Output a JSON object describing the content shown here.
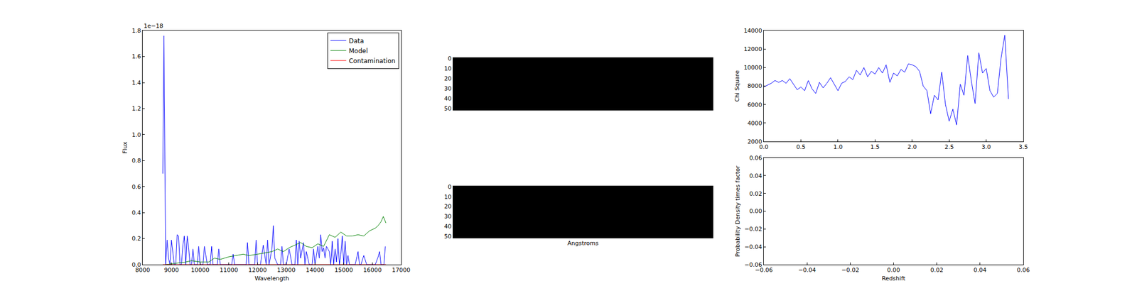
{
  "chart_data": [
    {
      "type": "line",
      "x_label": "Wavelength",
      "y_label": "Flux",
      "annotations": [
        "1e−18"
      ],
      "xlim": [
        8000,
        17000
      ],
      "xticks": [
        8000,
        9000,
        10000,
        11000,
        12000,
        13000,
        14000,
        15000,
        16000,
        17000
      ],
      "ylim": [
        0,
        1.8
      ],
      "yticks": [
        {
          "value": 0,
          "label": "0.0"
        },
        0.2,
        0.4,
        0.6,
        0.8,
        {
          "value": 1,
          "label": "1.0"
        },
        1.2,
        1.4,
        1.6,
        1.8
      ],
      "legend": "upper right",
      "series": [
        {
          "name": "Data",
          "color": "#0000ff",
          "x": [
            8700,
            8740,
            8800,
            8850,
            8900,
            8950,
            9000,
            9050,
            9100,
            9150,
            9200,
            9250,
            9300,
            9350,
            9400,
            9450,
            9500,
            9550,
            9600,
            9650,
            9700,
            9750,
            9800,
            9850,
            9900,
            9950,
            10000,
            10050,
            10100,
            10150,
            10200,
            10250,
            10300,
            10350,
            10400,
            10450,
            10500,
            10550,
            10600,
            10650,
            10700,
            10750,
            10800,
            10850,
            10900,
            11000,
            11100,
            11150,
            11200,
            11300,
            11400,
            11500,
            11600,
            11650,
            11700,
            11800,
            11900,
            11950,
            12000,
            12100,
            12200,
            12300,
            12350,
            12400,
            12500,
            12550,
            12600,
            12700,
            12800,
            12850,
            12900,
            13000,
            13100,
            13200,
            13300,
            13350,
            13400,
            13450,
            13500,
            13600,
            13650,
            13700,
            13800,
            13900,
            13950,
            14000,
            14100,
            14150,
            14200,
            14250,
            14300,
            14350,
            14400,
            14450,
            14500,
            14550,
            14600,
            14650,
            14700,
            14750,
            14800,
            14850,
            14900,
            14950,
            15000,
            15050,
            15100,
            15150,
            15200,
            15300,
            15400,
            15500,
            15550,
            15600,
            15700,
            15800,
            15900,
            16000,
            16100,
            16200,
            16250,
            16300,
            16350,
            16400,
            16450
          ],
          "values": [
            0.7,
            1.76,
            0.0,
            0.19,
            0.05,
            0.0,
            0.19,
            0.08,
            0.0,
            0.0,
            0.23,
            0.22,
            0.0,
            0.0,
            0.15,
            0.22,
            0.0,
            0.22,
            0.13,
            0.0,
            0.0,
            0.12,
            0.0,
            0.0,
            0.0,
            0.14,
            0.0,
            0.0,
            0.0,
            0.14,
            0.06,
            0.0,
            0.0,
            0.0,
            0.14,
            0.0,
            0.0,
            0.0,
            0.0,
            0.12,
            0.0,
            0.0,
            0.0,
            0.0,
            0.0,
            0.0,
            0.0,
            0.08,
            0.0,
            0.0,
            0.0,
            0.0,
            0.0,
            0.17,
            0.0,
            0.0,
            0.0,
            0.19,
            0.0,
            0.0,
            0.15,
            0.0,
            0.19,
            0.0,
            0.12,
            0.3,
            0.05,
            0.0,
            0.0,
            0.14,
            0.0,
            0.0,
            0.12,
            0.0,
            0.0,
            0.19,
            0.0,
            0.18,
            0.05,
            0.17,
            0.0,
            0.1,
            0.0,
            0.0,
            0.12,
            0.0,
            0.14,
            0.05,
            0.23,
            0.1,
            0.13,
            0.05,
            0.14,
            0.12,
            0.1,
            0.0,
            0.18,
            0.0,
            0.12,
            0.02,
            0.2,
            0.0,
            0.08,
            0.22,
            0.0,
            0.18,
            0.0,
            0.07,
            0.0,
            0.0,
            0.0,
            0.1,
            0.0,
            0.0,
            0.07,
            0.0,
            0.0,
            0.0,
            0.0,
            0.06,
            0.1,
            0.0,
            0.0,
            0.0,
            0.14
          ]
        },
        {
          "name": "Model",
          "color": "#008000",
          "x": [
            8800,
            9000,
            9500,
            9700,
            10000,
            10300,
            10500,
            10700,
            11000,
            11500,
            11700,
            12000,
            12500,
            12700,
            12900,
            13100,
            13300,
            13500,
            13700,
            13900,
            14100,
            14300,
            14500,
            14700,
            14900,
            15100,
            15300,
            15500,
            15700,
            15900,
            16100,
            16200,
            16300,
            16380,
            16470
          ],
          "values": [
            0.0,
            0.005,
            0.02,
            0.03,
            0.02,
            0.02,
            0.05,
            0.04,
            0.06,
            0.08,
            0.07,
            0.08,
            0.1,
            0.12,
            0.1,
            0.13,
            0.15,
            0.17,
            0.14,
            0.13,
            0.16,
            0.14,
            0.23,
            0.21,
            0.25,
            0.22,
            0.22,
            0.23,
            0.22,
            0.26,
            0.28,
            0.3,
            0.33,
            0.37,
            0.32
          ]
        },
        {
          "name": "Contamination",
          "color": "#ff0000",
          "x": [
            8700,
            10000,
            12000,
            14000,
            16470
          ],
          "values": [
            0,
            0,
            0,
            0,
            0
          ]
        }
      ]
    },
    {
      "type": "heatmap",
      "ylim": [
        51.5,
        -0.5
      ],
      "yticks": [
        0,
        10,
        20,
        30,
        40,
        50
      ],
      "tick_labels": "y",
      "color": "#000000",
      "cells": [
        [
          0
        ],
        [
          0
        ],
        [
          0
        ],
        [
          0
        ],
        [
          0
        ],
        [
          0
        ],
        [
          0
        ],
        [
          0
        ],
        [
          0
        ],
        [
          0
        ],
        [
          0
        ],
        [
          0
        ],
        [
          0
        ],
        [
          0
        ],
        [
          0
        ],
        [
          0
        ],
        [
          0
        ],
        [
          0
        ],
        [
          0
        ],
        [
          0
        ],
        [
          0
        ],
        [
          0
        ],
        [
          0
        ],
        [
          0
        ],
        [
          0
        ],
        [
          0
        ],
        [
          0
        ],
        [
          0
        ],
        [
          0
        ],
        [
          0
        ],
        [
          0
        ],
        [
          0
        ],
        [
          0
        ],
        [
          0
        ],
        [
          0
        ],
        [
          0
        ],
        [
          0
        ],
        [
          0
        ],
        [
          0
        ],
        [
          0
        ],
        [
          0
        ],
        [
          0
        ],
        [
          0
        ],
        [
          0
        ],
        [
          0
        ],
        [
          0
        ],
        [
          0
        ],
        [
          0
        ],
        [
          0
        ],
        [
          0
        ],
        [
          0
        ],
        [
          0
        ]
      ]
    },
    {
      "type": "heatmap",
      "x_label": "Angstroms",
      "ylim": [
        51.5,
        -0.5
      ],
      "yticks": [
        0,
        10,
        20,
        30,
        40,
        50
      ],
      "tick_labels": "y",
      "color": "#000000",
      "cells": [
        [
          0
        ],
        [
          0
        ],
        [
          0
        ],
        [
          0
        ],
        [
          0
        ],
        [
          0
        ],
        [
          0
        ],
        [
          0
        ],
        [
          0
        ],
        [
          0
        ],
        [
          0
        ],
        [
          0
        ],
        [
          0
        ],
        [
          0
        ],
        [
          0
        ],
        [
          0
        ],
        [
          0
        ],
        [
          0
        ],
        [
          0
        ],
        [
          0
        ],
        [
          0
        ],
        [
          0
        ],
        [
          0
        ],
        [
          0
        ],
        [
          0
        ],
        [
          0
        ],
        [
          0
        ],
        [
          0
        ],
        [
          0
        ],
        [
          0
        ],
        [
          0
        ],
        [
          0
        ],
        [
          0
        ],
        [
          0
        ],
        [
          0
        ],
        [
          0
        ],
        [
          0
        ],
        [
          0
        ],
        [
          0
        ],
        [
          0
        ],
        [
          0
        ],
        [
          0
        ],
        [
          0
        ],
        [
          0
        ],
        [
          0
        ],
        [
          0
        ],
        [
          0
        ],
        [
          0
        ],
        [
          0
        ],
        [
          0
        ],
        [
          0
        ],
        [
          0
        ]
      ]
    },
    {
      "type": "line",
      "y_label": "Chi Square",
      "xlim": [
        0,
        3.5
      ],
      "xticks": [
        {
          "value": 0,
          "label": "0.0"
        },
        0.5,
        {
          "value": 1,
          "label": "1.0"
        },
        1.5,
        {
          "value": 2,
          "label": "2.0"
        },
        2.5,
        {
          "value": 3,
          "label": "3.0"
        },
        3.5
      ],
      "ylim": [
        2000,
        14000
      ],
      "yticks": [
        2000,
        4000,
        6000,
        8000,
        10000,
        12000,
        14000
      ],
      "series": [
        {
          "color": "#0000ff",
          "x": [
            0,
            0.05,
            0.1,
            0.15,
            0.2,
            0.25,
            0.3,
            0.35,
            0.4,
            0.45,
            0.5,
            0.55,
            0.6,
            0.65,
            0.7,
            0.75,
            0.8,
            0.85,
            0.9,
            0.95,
            1.0,
            1.05,
            1.1,
            1.15,
            1.2,
            1.25,
            1.3,
            1.35,
            1.4,
            1.45,
            1.5,
            1.55,
            1.6,
            1.65,
            1.7,
            1.75,
            1.8,
            1.85,
            1.9,
            1.95,
            2.0,
            2.05,
            2.1,
            2.15,
            2.2,
            2.25,
            2.3,
            2.35,
            2.4,
            2.45,
            2.5,
            2.55,
            2.6,
            2.65,
            2.7,
            2.75,
            2.8,
            2.85,
            2.9,
            2.95,
            3.0,
            3.05,
            3.1,
            3.15,
            3.2,
            3.25,
            3.3
          ],
          "values": [
            7900,
            8100,
            8300,
            8600,
            8400,
            8600,
            8300,
            8800,
            8200,
            7600,
            7900,
            7500,
            8600,
            7700,
            7200,
            8400,
            7800,
            8300,
            8900,
            8200,
            7500,
            8300,
            8500,
            9000,
            8700,
            9700,
            9200,
            10000,
            9000,
            9600,
            9300,
            10000,
            9400,
            10300,
            8400,
            9400,
            9100,
            9800,
            9500,
            10400,
            10300,
            10100,
            9600,
            8000,
            7500,
            5000,
            7000,
            6500,
            9500,
            6000,
            4200,
            5500,
            3800,
            8200,
            7000,
            11300,
            8500,
            6100,
            11600,
            9400,
            9900,
            7500,
            6800,
            7200,
            11000,
            13500,
            6600
          ]
        }
      ]
    },
    {
      "type": "line",
      "x_label": "Redshift",
      "y_label": "Probability Density times factor",
      "xlim": [
        -0.06,
        0.06
      ],
      "xticks": [
        {
          "value": -0.06,
          "label": "−0.06"
        },
        {
          "value": -0.04,
          "label": "−0.04"
        },
        {
          "value": -0.02,
          "label": "−0.02"
        },
        {
          "value": 0,
          "label": "0.00"
        },
        0.02,
        0.04,
        0.06
      ],
      "ylim": [
        -0.06,
        0.06
      ],
      "yticks": [
        {
          "value": -0.06,
          "label": "−0.06"
        },
        {
          "value": -0.04,
          "label": "−0.04"
        },
        {
          "value": -0.02,
          "label": "−0.02"
        },
        {
          "value": 0,
          "label": "0.00"
        },
        0.02,
        0.04,
        0.06
      ],
      "series": []
    }
  ]
}
